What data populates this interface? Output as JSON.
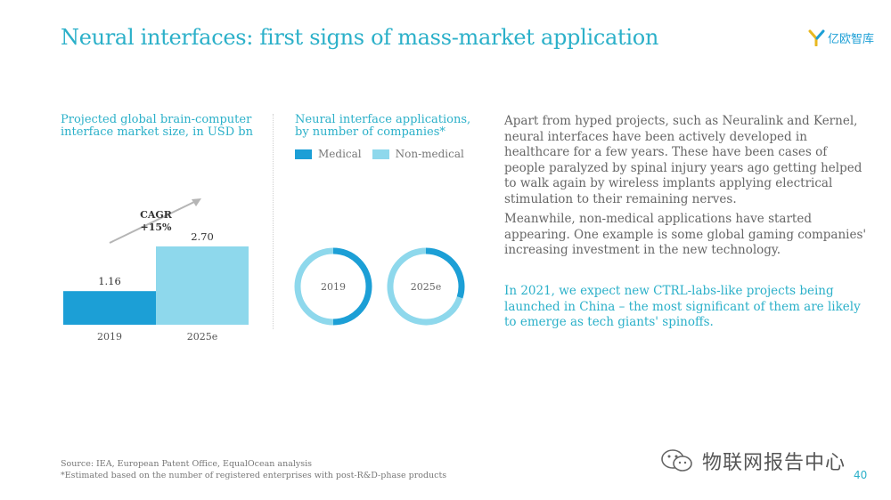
{
  "header": {
    "title": "Neural interfaces: first signs of mass-market application",
    "logo_text": "亿欧智库"
  },
  "left_chart": {
    "title_line1": "Projected global brain-computer",
    "title_line2": "interface market size, in USD bn",
    "cagr_line1": "CAGR",
    "cagr_line2": "+15%"
  },
  "right_chart": {
    "title_line1": "Neural interface applications,",
    "title_line2": "by number of companies*",
    "legend": [
      "Medical",
      "Non-medical"
    ]
  },
  "colors": {
    "medical": "#1c9fd6",
    "non_medical": "#8ed8ec",
    "accent": "#2bb0c9"
  },
  "chart_data": [
    {
      "type": "bar",
      "title": "Projected global brain-computer interface market size, in USD bn",
      "categories": [
        "2019",
        "2025e"
      ],
      "values": [
        1.16,
        2.7
      ],
      "data_labels": [
        "1.16",
        "2.70"
      ]
    },
    {
      "type": "pie",
      "title": "Neural interface applications, by number of companies*",
      "legend": [
        "Medical",
        "Non-medical"
      ],
      "charts": [
        {
          "label": "2019",
          "shares": [
            0.5,
            0.5
          ]
        },
        {
          "label": "2025e",
          "shares": [
            0.3,
            0.7
          ]
        }
      ]
    }
  ],
  "text": {
    "p1": "Apart from hyped projects, such as Neuralink and Kernel, neural interfaces have been actively developed in healthcare for a few years. These have been cases of people paralyzed by spinal injury years ago getting helped to walk again by wireless implants applying electrical stimulation to their remaining nerves.",
    "p2": "Meanwhile, non-medical applications have started appearing. One example is some global gaming companies' increasing investment in the new technology.",
    "p3": "In 2021, we expect new CTRL-labs-like projects being launched in China – the most significant of them are likely to emerge as tech giants' spinoffs."
  },
  "footer": {
    "source": "Source: IEA, European Patent Office, EqualOcean analysis",
    "note": "*Estimated based on the number of registered enterprises with post-R&D-phase products",
    "page": "40"
  },
  "watermark": {
    "text": "物联网报告中心"
  }
}
